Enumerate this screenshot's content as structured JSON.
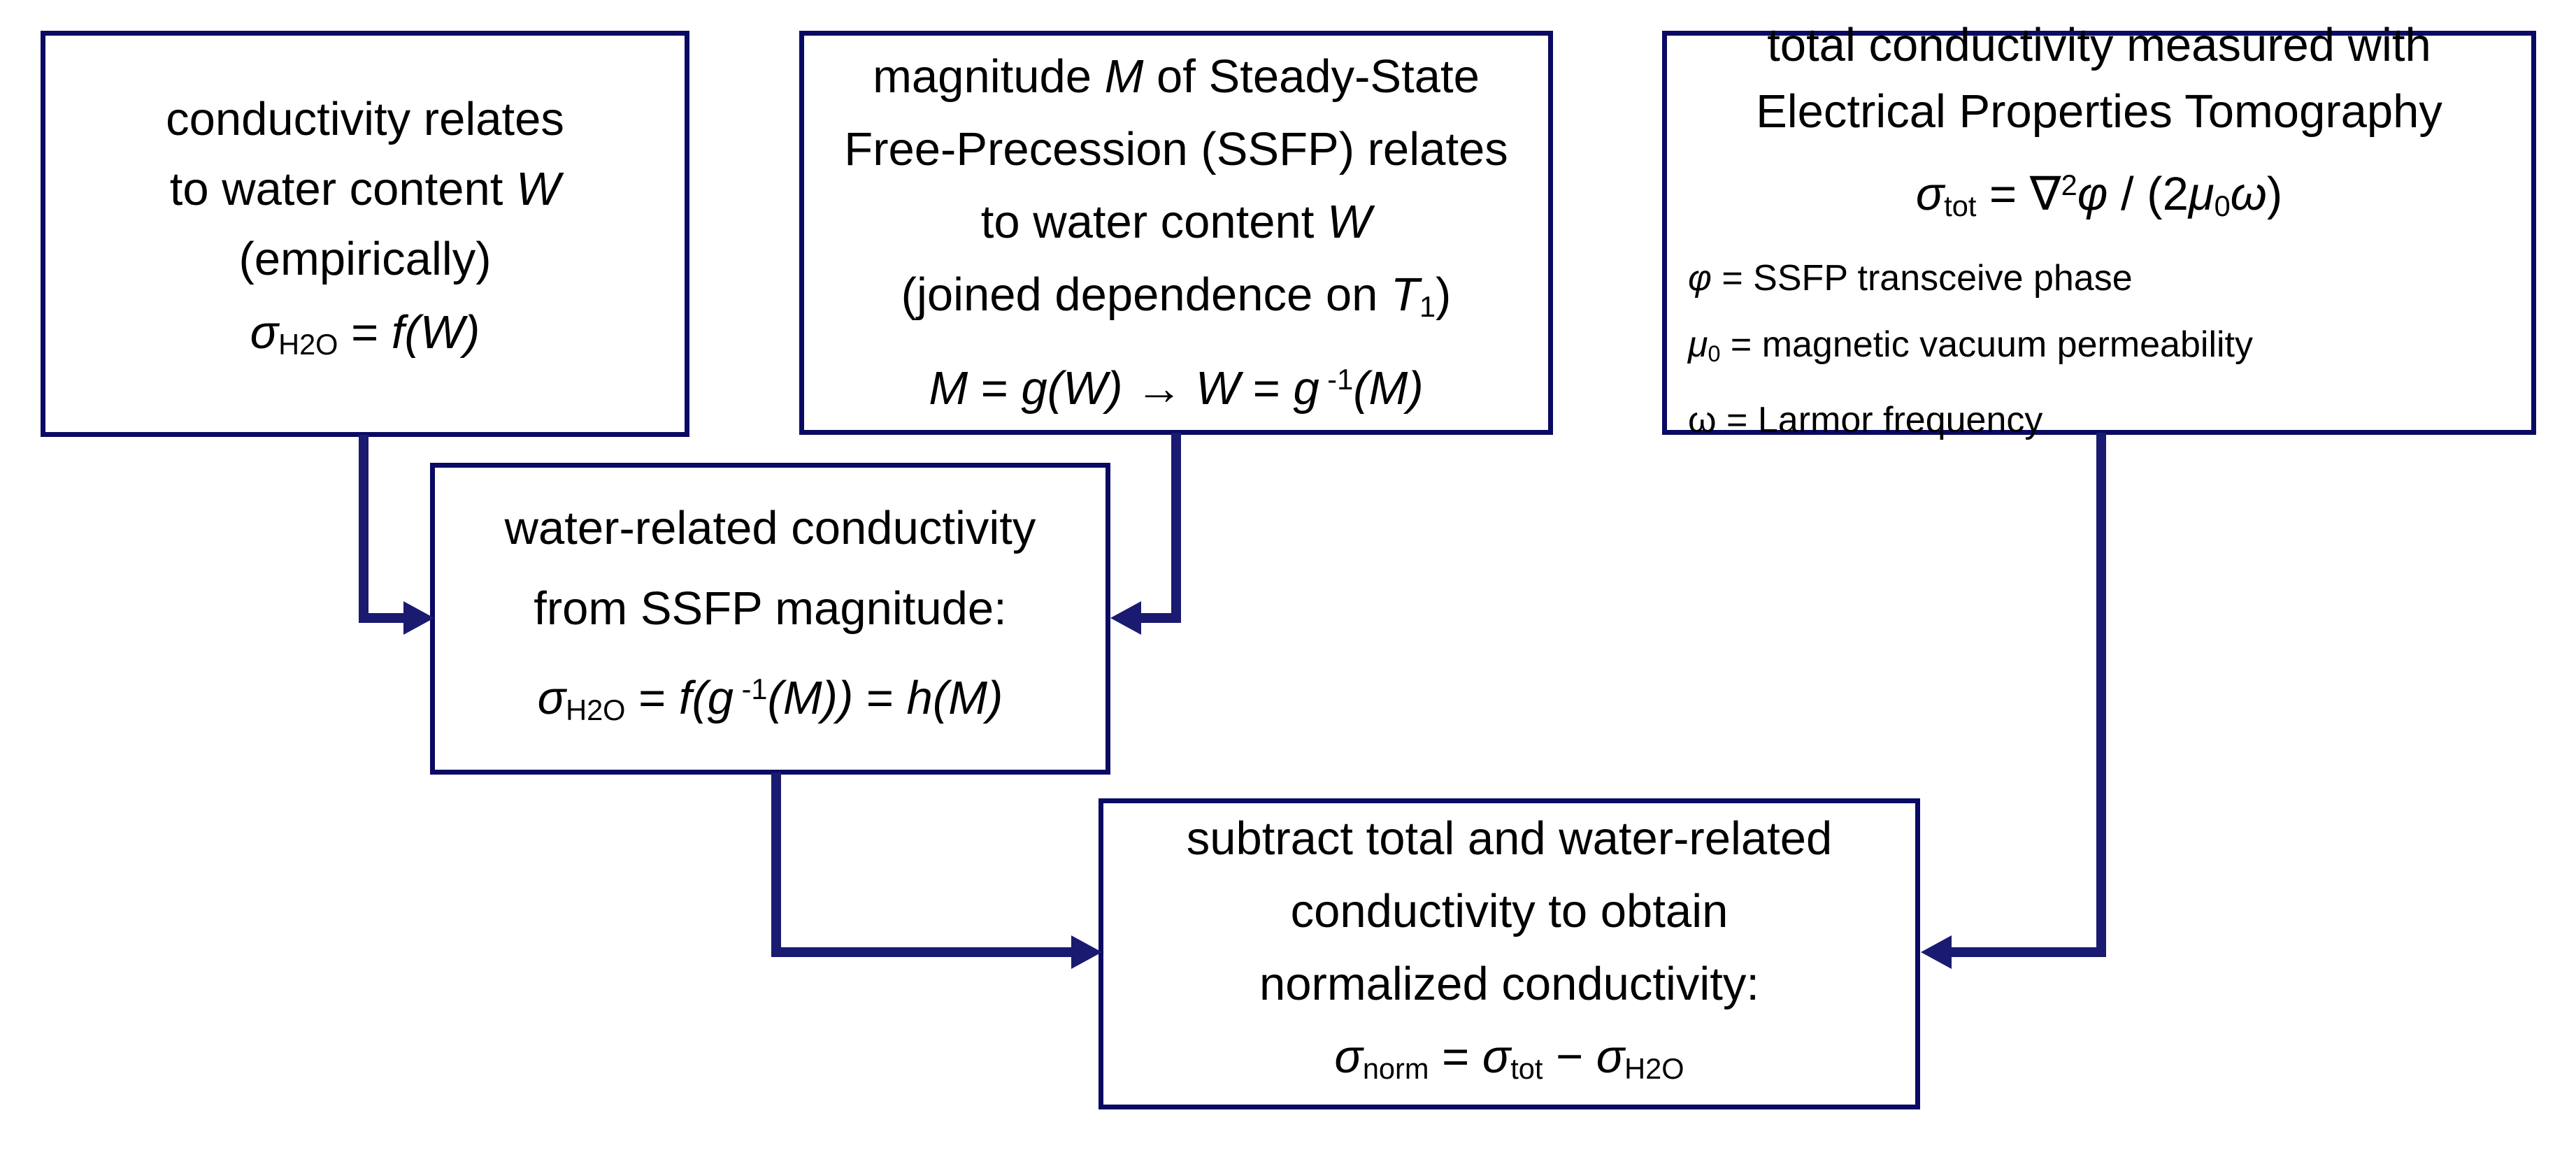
{
  "colors": {
    "background": "#ffffff",
    "box_border": "#0a0a64",
    "arrow": "#1a1a70",
    "text": "#000000"
  },
  "boxes": {
    "empirical_relation": {
      "lines": [
        {
          "style": "normal",
          "segments": [
            {
              "t": "conductivity relates",
              "s": "n"
            }
          ]
        },
        {
          "style": "normal",
          "segments": [
            {
              "t": "to water content ",
              "s": "n"
            },
            {
              "t": "W",
              "s": "i"
            }
          ]
        },
        {
          "style": "normal",
          "segments": [
            {
              "t": "(empirically)",
              "s": "n"
            }
          ]
        },
        {
          "style": "formula",
          "segments": [
            {
              "t": "σ",
              "s": "i"
            },
            {
              "t": "H2O",
              "s": "sub"
            },
            {
              "t": " = ",
              "s": "n"
            },
            {
              "t": "f(W)",
              "s": "i"
            }
          ]
        }
      ]
    },
    "ssfp_magnitude_relation": {
      "lines": [
        {
          "style": "normal",
          "segments": [
            {
              "t": "magnitude ",
              "s": "n"
            },
            {
              "t": "M",
              "s": "i"
            },
            {
              "t": " of Steady-State",
              "s": "n"
            }
          ]
        },
        {
          "style": "normal",
          "segments": [
            {
              "t": "Free-Precession (SSFP) relates",
              "s": "n"
            }
          ]
        },
        {
          "style": "normal",
          "segments": [
            {
              "t": "to water content ",
              "s": "n"
            },
            {
              "t": "W",
              "s": "i"
            }
          ]
        },
        {
          "style": "normal",
          "segments": [
            {
              "t": "(joined dependence on ",
              "s": "n"
            },
            {
              "t": "T",
              "s": "i"
            },
            {
              "t": "1",
              "s": "sub"
            },
            {
              "t": ")",
              "s": "n"
            }
          ]
        },
        {
          "style": "formula",
          "segments": [
            {
              "t": "M",
              "s": "i"
            },
            {
              "t": " = ",
              "s": "n"
            },
            {
              "t": "g(W)",
              "s": "i"
            },
            {
              "t": "  ",
              "s": "n"
            },
            {
              "t": "→",
              "s": "b"
            },
            {
              "t": "  ",
              "s": "n"
            },
            {
              "t": "W",
              "s": "i"
            },
            {
              "t": " = ",
              "s": "n"
            },
            {
              "t": "g",
              "s": "i"
            },
            {
              "t": " -1",
              "s": "sup"
            },
            {
              "t": "(M)",
              "s": "i"
            }
          ]
        }
      ]
    },
    "ept_total_conductivity": {
      "lines": [
        {
          "style": "normal",
          "segments": [
            {
              "t": "total conductivity measured with",
              "s": "n"
            }
          ]
        },
        {
          "style": "normal",
          "segments": [
            {
              "t": "Electrical Properties Tomography",
              "s": "n"
            }
          ]
        },
        {
          "style": "formula",
          "segments": [
            {
              "t": "σ",
              "s": "i"
            },
            {
              "t": "tot",
              "s": "sub"
            },
            {
              "t": " = ",
              "s": "n"
            },
            {
              "t": "∇",
              "s": "n"
            },
            {
              "t": "2",
              "s": "sup"
            },
            {
              "t": "φ",
              "s": "i"
            },
            {
              "t": " / (2",
              "s": "n"
            },
            {
              "t": "μ",
              "s": "i"
            },
            {
              "t": "0",
              "s": "sub"
            },
            {
              "t": "ω",
              "s": "i"
            },
            {
              "t": ")",
              "s": "n"
            }
          ]
        },
        {
          "style": "small-left",
          "segments": [
            {
              "t": "φ",
              "s": "i"
            },
            {
              "t": " = SSFP transceive phase",
              "s": "n"
            }
          ]
        },
        {
          "style": "small-left",
          "segments": [
            {
              "t": "μ",
              "s": "i"
            },
            {
              "t": "0",
              "s": "sub"
            },
            {
              "t": " = magnetic vacuum permeability",
              "s": "n"
            }
          ]
        },
        {
          "style": "small-left",
          "segments": [
            {
              "t": "ω = Larmor frequency",
              "s": "n"
            }
          ]
        }
      ]
    },
    "water_related_conductivity": {
      "lines": [
        {
          "style": "normal",
          "segments": [
            {
              "t": "water-related conductivity",
              "s": "n"
            }
          ]
        },
        {
          "style": "normal",
          "segments": [
            {
              "t": "from SSFP magnitude:",
              "s": "n"
            }
          ]
        },
        {
          "style": "formula",
          "segments": [
            {
              "t": "σ",
              "s": "i"
            },
            {
              "t": "H2O",
              "s": "sub"
            },
            {
              "t": " = ",
              "s": "n"
            },
            {
              "t": "f",
              "s": "i"
            },
            {
              "t": "(g",
              "s": "i"
            },
            {
              "t": " -1",
              "s": "sup"
            },
            {
              "t": "(M))",
              "s": "i"
            },
            {
              "t": " = ",
              "s": "n"
            },
            {
              "t": "h(M)",
              "s": "i"
            }
          ]
        }
      ]
    },
    "normalized_conductivity": {
      "lines": [
        {
          "style": "normal",
          "segments": [
            {
              "t": "subtract total and water-related",
              "s": "n"
            }
          ]
        },
        {
          "style": "normal",
          "segments": [
            {
              "t": "conductivity to obtain",
              "s": "n"
            }
          ]
        },
        {
          "style": "normal",
          "segments": [
            {
              "t": "normalized conductivity:",
              "s": "n"
            }
          ]
        },
        {
          "style": "formula",
          "segments": [
            {
              "t": "σ",
              "s": "i"
            },
            {
              "t": "norm",
              "s": "sub"
            },
            {
              "t": " = ",
              "s": "n"
            },
            {
              "t": "σ",
              "s": "i"
            },
            {
              "t": "tot",
              "s": "sub"
            },
            {
              "t": " − ",
              "s": "n"
            },
            {
              "t": "σ",
              "s": "i"
            },
            {
              "t": "H2O",
              "s": "sub"
            }
          ]
        }
      ]
    }
  },
  "arrows": [
    {
      "from": "empirical_relation",
      "to": "water_related_conductivity",
      "direction": "down-then-right"
    },
    {
      "from": "ssfp_magnitude_relation",
      "to": "water_related_conductivity",
      "direction": "down-then-left"
    },
    {
      "from": "water_related_conductivity",
      "to": "normalized_conductivity",
      "direction": "down-then-right"
    },
    {
      "from": "ept_total_conductivity",
      "to": "normalized_conductivity",
      "direction": "down-then-left"
    }
  ]
}
